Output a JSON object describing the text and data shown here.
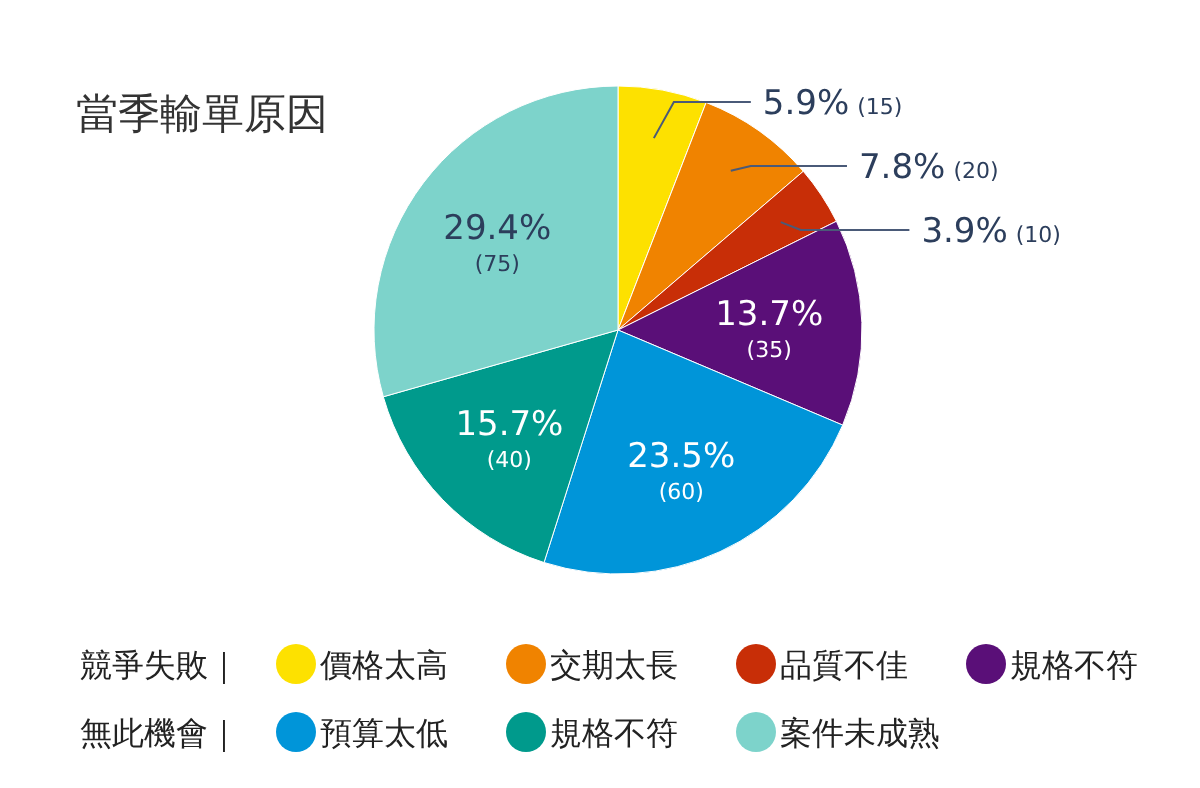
{
  "chart_data": {
    "type": "pie",
    "title": "當季輸單原因",
    "categories": [
      "價格太高",
      "交期太長",
      "品質不佳",
      "規格不符",
      "預算太低",
      "規格不符",
      "案件未成熟"
    ],
    "values": [
      15,
      20,
      10,
      35,
      60,
      40,
      75
    ],
    "colors": [
      "#fde100",
      "#f08300",
      "#c82e07",
      "#5a0f78",
      "#0095d9",
      "#009a8c",
      "#7dd3cb"
    ],
    "value_labels": [
      "5.9% (15)",
      "7.8% (20)",
      "3.9% (10)",
      "13.7% (35)",
      "23.5% (60)",
      "15.7% (40)",
      "29.4% (75)"
    ],
    "annotations": [
      "競爭失敗｜",
      "無此機會｜"
    ],
    "legend": "bottom"
  }
}
